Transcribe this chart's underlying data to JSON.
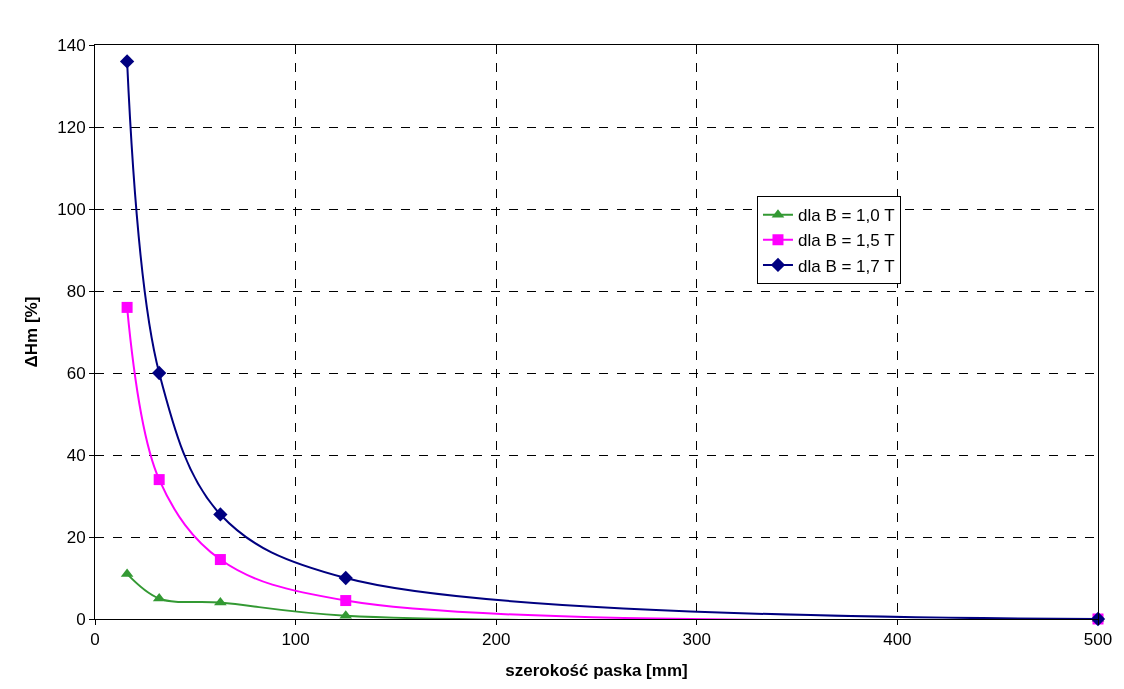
{
  "chart_data": {
    "type": "line",
    "xlabel": "szerokość paska [mm]",
    "ylabel": "ΔHm [%]",
    "x": [
      16,
      32,
      62.5,
      125,
      500
    ],
    "series": [
      {
        "name": "dla B = 1,0 T",
        "color": "#339933",
        "marker": "triangle",
        "values": [
          11,
          5,
          4,
          0.8,
          0
        ]
      },
      {
        "name": "dla B = 1,5 T",
        "color": "#ff00ff",
        "marker": "square",
        "values": [
          76,
          34,
          14.5,
          4.5,
          0
        ]
      },
      {
        "name": "dla B = 1,7 T",
        "color": "#000080",
        "marker": "diamond",
        "values": [
          136,
          60,
          25.5,
          10,
          0
        ]
      }
    ],
    "xlim": [
      0,
      500
    ],
    "xticks": [
      0,
      100,
      200,
      300,
      400,
      500
    ],
    "ylim": [
      0,
      140
    ],
    "yticks": [
      0,
      20,
      40,
      60,
      80,
      100,
      120,
      140
    ],
    "grid": true,
    "legend": "right",
    "line_style": "solid"
  }
}
